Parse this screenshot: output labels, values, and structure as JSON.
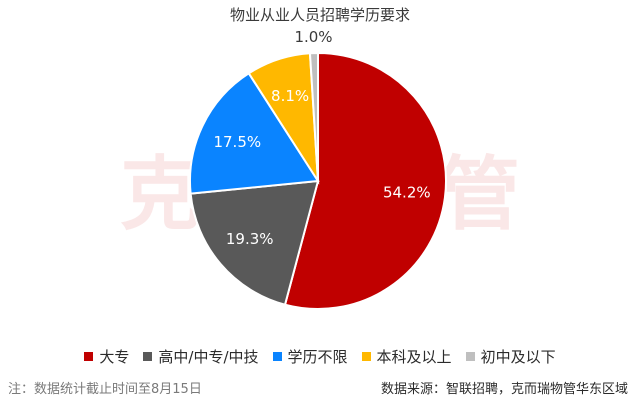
{
  "title": "物业从业人员招聘学历要求",
  "watermark": "克而瑞物管",
  "footnote": "注：数据统计截止时间至8月15日",
  "source": "数据来源：智联招聘，克而瑞物管华东区域",
  "chart_data": {
    "type": "pie",
    "title": "物业从业人员招聘学历要求",
    "categories": [
      "大专",
      "高中/中专/中技",
      "学历不限",
      "本科及以上",
      "初中及以下"
    ],
    "values": [
      54.2,
      19.3,
      17.5,
      8.1,
      1.0
    ],
    "labels": [
      "54.2%",
      "19.3%",
      "17.5%",
      "8.1%",
      "1.0%"
    ],
    "colors": [
      "#c00000",
      "#595959",
      "#0a84ff",
      "#ffb800",
      "#bfbfbf"
    ],
    "label_colors": [
      "#ffffff",
      "#ffffff",
      "#ffffff",
      "#ffffff",
      "#3a3a3a"
    ],
    "legend_position": "bottom"
  }
}
